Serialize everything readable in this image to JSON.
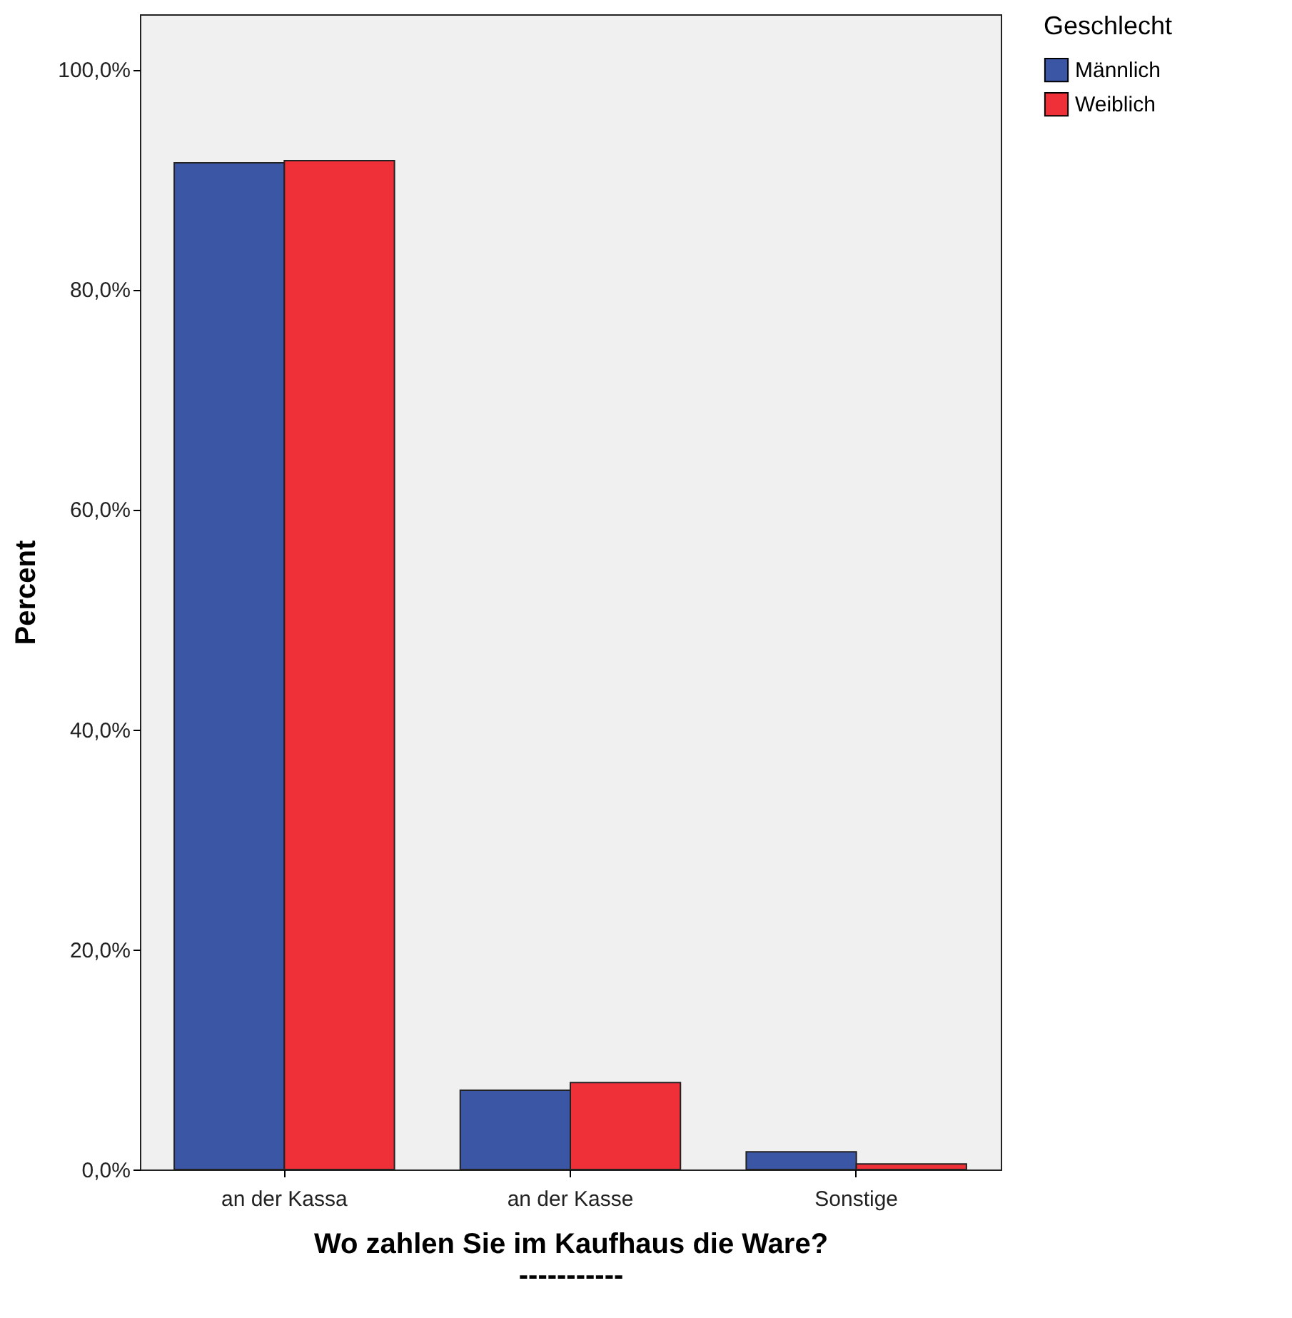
{
  "chart_data": {
    "type": "bar",
    "xlabel": "Wo zahlen Sie im Kaufhaus die Ware?\n-----------",
    "ylabel": "Percent",
    "legend_title": "Geschlecht",
    "legend": "top right",
    "grid": false,
    "categories": [
      "an der Kassa",
      "an der Kasse",
      "Sonstige"
    ],
    "series": [
      {
        "name": "Männlich",
        "color": "#3c56a6",
        "values": [
          91.5,
          7.2,
          1.6
        ]
      },
      {
        "name": "Weiblich",
        "color": "#f03038",
        "values": [
          91.7,
          7.9,
          0.5
        ]
      }
    ],
    "ylim": [
      0,
      105
    ],
    "yticks": [
      {
        "value": 0,
        "label": "0,0%"
      },
      {
        "value": 20,
        "label": "20,0%"
      },
      {
        "value": 40,
        "label": "40,0%"
      },
      {
        "value": 60,
        "label": "60,0%"
      },
      {
        "value": 80,
        "label": "80,0%"
      },
      {
        "value": 100,
        "label": "100,0%"
      }
    ]
  }
}
